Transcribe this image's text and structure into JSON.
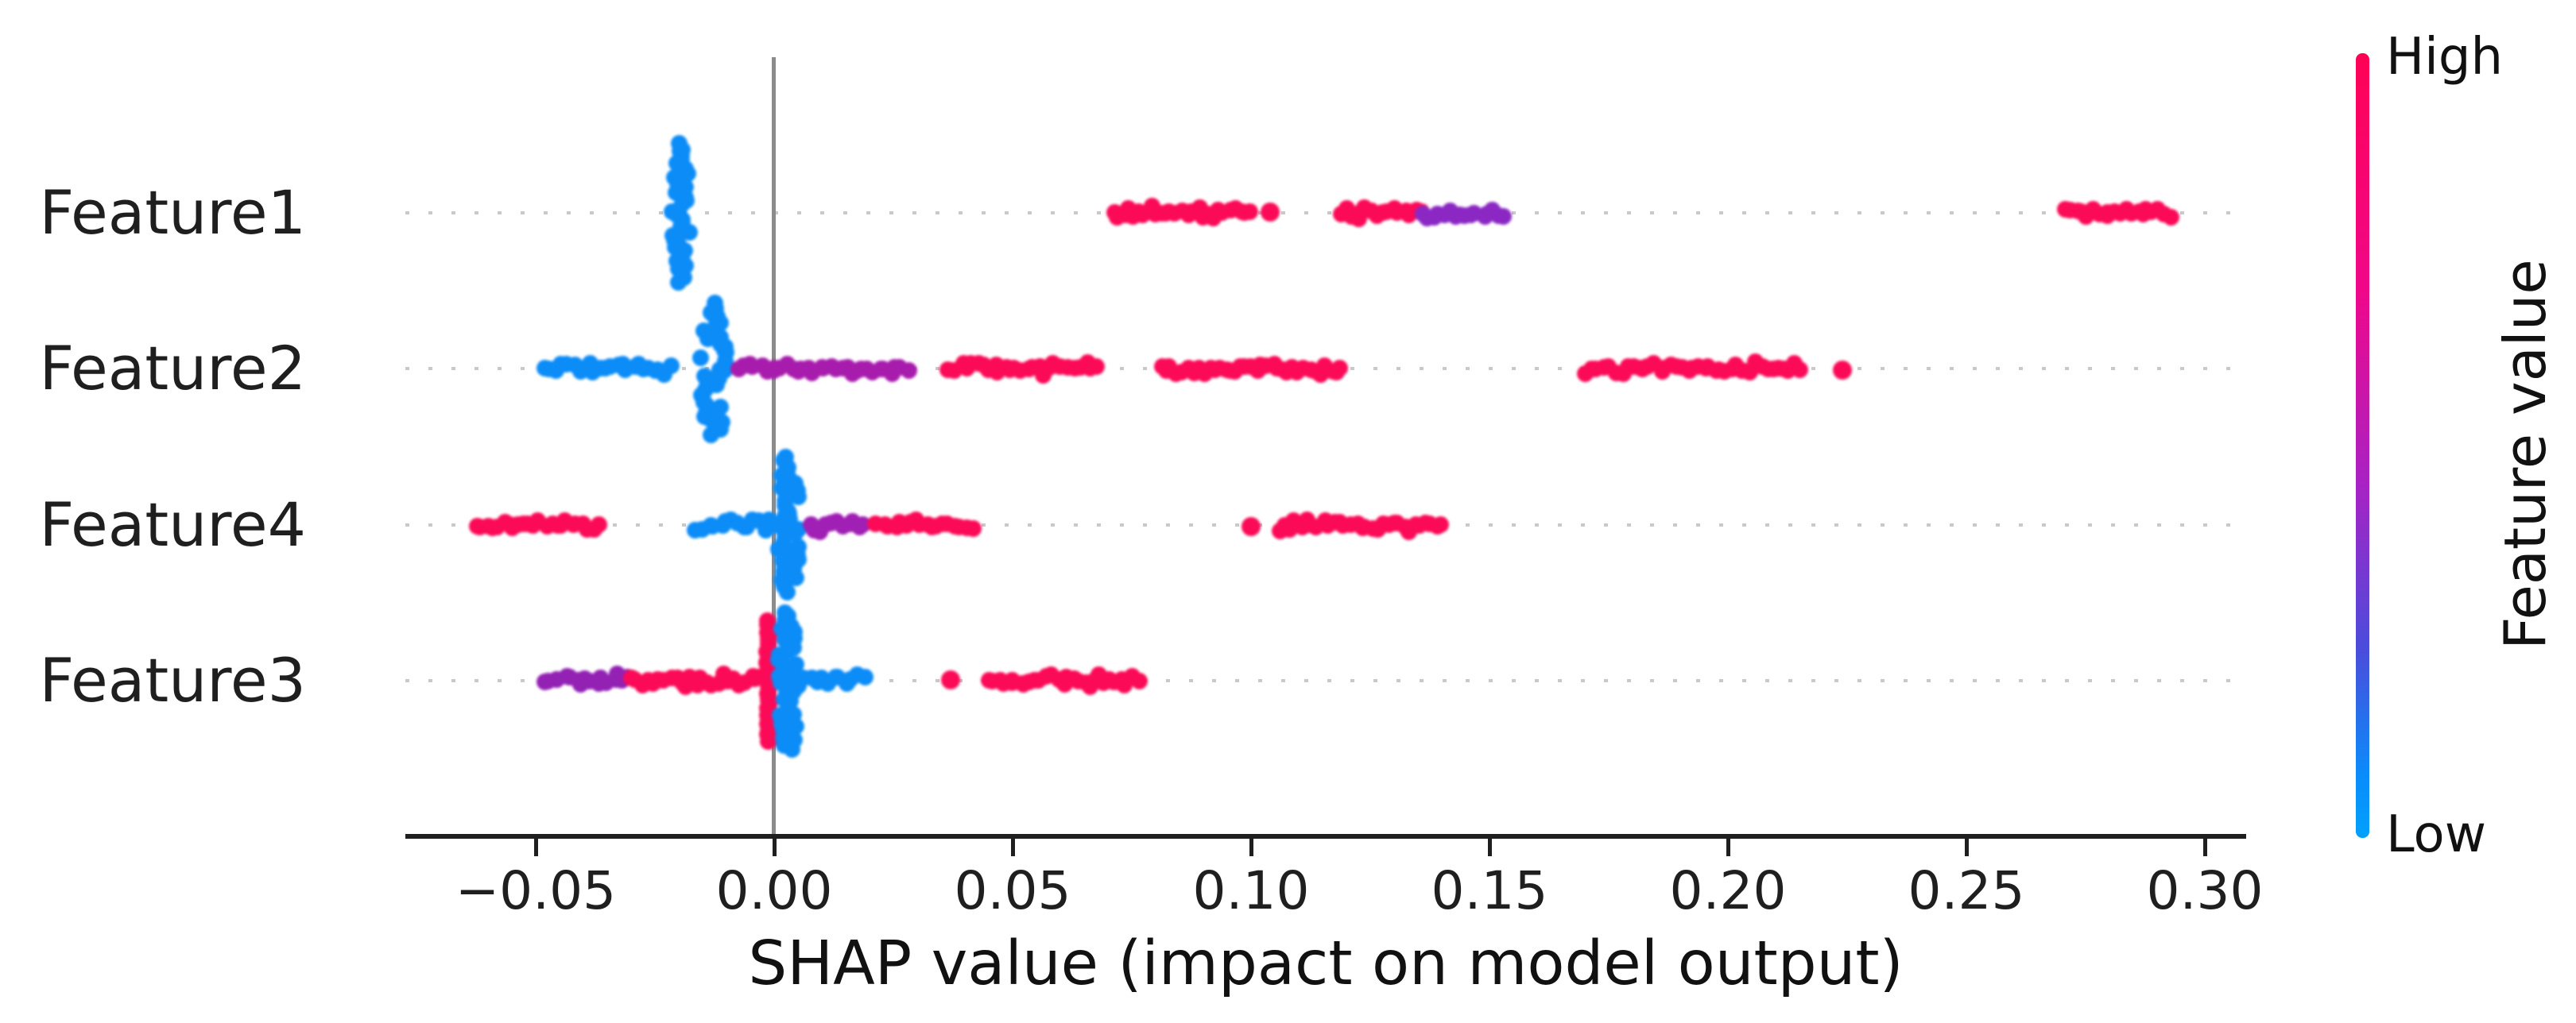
{
  "chart_data": {
    "type": "scatter",
    "subtype": "shap-beeswarm-summary",
    "title": "",
    "xlabel": "SHAP value (impact on model output)",
    "ylabel": "",
    "xlim": [
      -0.077,
      0.309
    ],
    "grid": "dotted horizontal line per feature row",
    "x_ticks": [
      {
        "label": "−0.05",
        "value": -0.05
      },
      {
        "label": "0.00",
        "value": 0.0
      },
      {
        "label": "0.05",
        "value": 0.05
      },
      {
        "label": "0.10",
        "value": 0.1
      },
      {
        "label": "0.15",
        "value": 0.15
      },
      {
        "label": "0.20",
        "value": 0.2
      },
      {
        "label": "0.25",
        "value": 0.25
      },
      {
        "label": "0.30",
        "value": 0.3
      }
    ],
    "colorbar": {
      "title": "Feature value",
      "high_label": "High",
      "low_label": "Low",
      "position": "right",
      "color_high": "#fb0a57",
      "color_low": "#0b8cf7",
      "gradient_stops": [
        "#fe0254 0%",
        "#f00789 30%",
        "#a822c4 55%",
        "#4a4ddb 76%",
        "#0a8cfa 92%",
        "#02a1fc 100%"
      ]
    },
    "palette": {
      "high": "#fb0a57",
      "low": "#0b8cf7"
    },
    "features": [
      {
        "label": "Feature1",
        "clusters": [
          {
            "type": "pile",
            "x": -0.0195,
            "half_height": 88,
            "width": 44,
            "color": "#0b8cf7"
          },
          {
            "type": "band",
            "from": 0.071,
            "to": 0.1,
            "color": "#fb0a57"
          },
          {
            "type": "point",
            "x": 0.104,
            "color": "#fb0a57"
          },
          {
            "type": "band",
            "from": 0.1185,
            "to": 0.1355,
            "color": "#fb0a57"
          },
          {
            "type": "band",
            "from": 0.136,
            "to": 0.153,
            "color": "#8b28c4"
          },
          {
            "type": "band",
            "from": 0.271,
            "to": 0.2925,
            "color": "#fb0a57"
          }
        ]
      },
      {
        "label": "Feature2",
        "clusters": [
          {
            "type": "band",
            "from": -0.048,
            "to": -0.0215,
            "color": "#0b8cf7"
          },
          {
            "type": "pile",
            "x": -0.0127,
            "half_height": 84,
            "width": 54,
            "color": "#0b8cf7"
          },
          {
            "type": "band",
            "from": -0.0075,
            "to": 0.0277,
            "color": "#a81cad"
          },
          {
            "type": "band",
            "from": 0.037,
            "to": 0.0575,
            "color": "#fb0a57"
          },
          {
            "type": "band",
            "from": 0.059,
            "to": 0.068,
            "color": "#fb0a57"
          },
          {
            "type": "band",
            "from": 0.081,
            "to": 0.119,
            "color": "#fb0a57"
          },
          {
            "type": "band",
            "from": 0.1695,
            "to": 0.1765,
            "color": "#fb0a57"
          },
          {
            "type": "band",
            "from": 0.178,
            "to": 0.215,
            "color": "#fb0a57"
          },
          {
            "type": "point",
            "x": 0.224,
            "color": "#fb0a57"
          }
        ]
      },
      {
        "label": "Feature4",
        "clusters": [
          {
            "type": "band",
            "from": -0.0625,
            "to": -0.0368,
            "color": "#fb0a57"
          },
          {
            "type": "band",
            "from": -0.016,
            "to": -0.0005,
            "color": "#0b8cf7"
          },
          {
            "type": "pile",
            "x": 0.0032,
            "half_height": 86,
            "width": 50,
            "color": "#0b8cf7"
          },
          {
            "type": "band",
            "from": 0.0073,
            "to": 0.019,
            "color": "#a01fb4"
          },
          {
            "type": "band",
            "from": 0.0218,
            "to": 0.0412,
            "color": "#fb0a57"
          },
          {
            "type": "point",
            "x": 0.1,
            "color": "#fb0a57"
          },
          {
            "type": "band",
            "from": 0.106,
            "to": 0.14,
            "color": "#fb0a57"
          }
        ]
      },
      {
        "label": "Feature3",
        "clusters": [
          {
            "type": "band",
            "from": -0.0485,
            "to": -0.0302,
            "color": "#9321b4"
          },
          {
            "type": "band",
            "from": -0.0298,
            "to": -0.0005,
            "color": "#fb0a57"
          },
          {
            "type": "pile",
            "x": -0.0012,
            "half_height": 78,
            "width": 26,
            "color": "#fb0a57"
          },
          {
            "type": "pile",
            "x": 0.003,
            "half_height": 88,
            "width": 46,
            "color": "#0b8cf7"
          },
          {
            "type": "band",
            "from": 0.0053,
            "to": 0.0187,
            "color": "#0b8cf7"
          },
          {
            "type": "point",
            "x": 0.037,
            "color": "#fb0a57"
          },
          {
            "type": "band",
            "from": 0.045,
            "to": 0.076,
            "color": "#fb0a57"
          }
        ]
      }
    ]
  }
}
